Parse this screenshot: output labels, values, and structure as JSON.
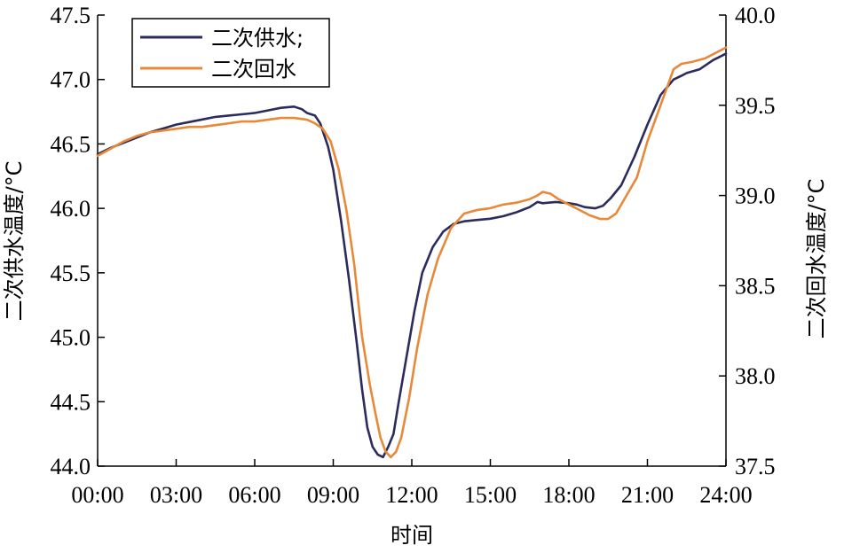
{
  "chart_data": {
    "type": "line",
    "xlabel": "时间",
    "ylabel_left": "二次供水温度/°C",
    "ylabel_right": "二次回水温度/°C",
    "x_ticks": [
      "00:00",
      "03:00",
      "06:00",
      "09:00",
      "12:00",
      "15:00",
      "18:00",
      "21:00",
      "24:00"
    ],
    "xlim_hours": [
      0,
      24
    ],
    "y_left_ticks": [
      "44.0",
      "44.5",
      "45.0",
      "45.5",
      "46.0",
      "46.5",
      "47.0",
      "47.5"
    ],
    "ylim_left": [
      44.0,
      47.5
    ],
    "y_right_ticks": [
      "37.5",
      "38.0",
      "38.5",
      "39.0",
      "39.5",
      "40.0"
    ],
    "ylim_right": [
      37.5,
      40.0
    ],
    "grid": false,
    "legend_position": "top-left",
    "series": [
      {
        "name": "二次供水;",
        "axis": "left",
        "color": "#2b2b5c",
        "x": [
          0.0,
          0.5,
          1.0,
          1.5,
          2.0,
          2.5,
          3.0,
          3.5,
          4.0,
          4.5,
          5.0,
          5.5,
          6.0,
          6.5,
          7.0,
          7.5,
          7.8,
          8.0,
          8.3,
          8.5,
          8.8,
          9.0,
          9.3,
          9.6,
          9.9,
          10.1,
          10.3,
          10.5,
          10.7,
          10.9,
          11.1,
          11.3,
          11.5,
          11.8,
          12.1,
          12.4,
          12.8,
          13.2,
          13.6,
          14.0,
          14.5,
          15.0,
          15.5,
          16.0,
          16.5,
          16.8,
          17.0,
          17.5,
          18.0,
          18.3,
          18.6,
          19.0,
          19.3,
          19.6,
          20.0,
          20.5,
          21.0,
          21.5,
          22.0,
          22.3,
          22.5,
          23.0,
          23.5,
          24.0
        ],
        "y": [
          46.42,
          46.47,
          46.51,
          46.55,
          46.59,
          46.62,
          46.65,
          46.67,
          46.69,
          46.71,
          46.72,
          46.73,
          46.74,
          46.76,
          46.78,
          46.79,
          46.77,
          46.74,
          46.72,
          46.66,
          46.48,
          46.3,
          45.9,
          45.45,
          44.95,
          44.6,
          44.3,
          44.15,
          44.09,
          44.07,
          44.15,
          44.25,
          44.5,
          44.85,
          45.2,
          45.5,
          45.7,
          45.82,
          45.88,
          45.9,
          45.91,
          45.92,
          45.94,
          45.97,
          46.01,
          46.05,
          46.04,
          46.05,
          46.04,
          46.03,
          46.01,
          46.0,
          46.02,
          46.08,
          46.18,
          46.4,
          46.65,
          46.88,
          47.0,
          47.03,
          47.05,
          47.08,
          47.15,
          47.2
        ]
      },
      {
        "name": "二次回水",
        "axis": "right",
        "color": "#e8893a",
        "x": [
          0.0,
          0.5,
          1.0,
          1.5,
          2.0,
          2.5,
          3.0,
          3.5,
          4.0,
          4.5,
          5.0,
          5.5,
          6.0,
          6.5,
          7.0,
          7.5,
          8.0,
          8.3,
          8.6,
          8.9,
          9.2,
          9.5,
          9.8,
          10.1,
          10.4,
          10.6,
          10.8,
          11.0,
          11.2,
          11.4,
          11.6,
          11.9,
          12.2,
          12.6,
          13.0,
          13.5,
          14.0,
          14.5,
          15.0,
          15.5,
          16.0,
          16.5,
          16.8,
          17.0,
          17.3,
          17.6,
          18.0,
          18.4,
          18.8,
          19.0,
          19.2,
          19.5,
          19.8,
          20.2,
          20.6,
          21.0,
          21.5,
          22.0,
          22.3,
          22.7,
          23.2,
          23.6,
          24.0
        ],
        "y": [
          39.22,
          39.26,
          39.3,
          39.33,
          39.35,
          39.36,
          39.37,
          39.38,
          39.38,
          39.39,
          39.4,
          39.41,
          39.41,
          39.42,
          39.43,
          39.43,
          39.42,
          39.4,
          39.37,
          39.3,
          39.15,
          38.92,
          38.62,
          38.22,
          37.95,
          37.8,
          37.66,
          37.58,
          37.55,
          37.58,
          37.66,
          37.88,
          38.15,
          38.45,
          38.65,
          38.82,
          38.9,
          38.92,
          38.93,
          38.95,
          38.96,
          38.98,
          39.0,
          39.02,
          39.01,
          38.98,
          38.95,
          38.92,
          38.89,
          38.88,
          38.87,
          38.87,
          38.9,
          39.0,
          39.1,
          39.3,
          39.5,
          39.7,
          39.73,
          39.74,
          39.76,
          39.79,
          39.82
        ]
      }
    ]
  }
}
